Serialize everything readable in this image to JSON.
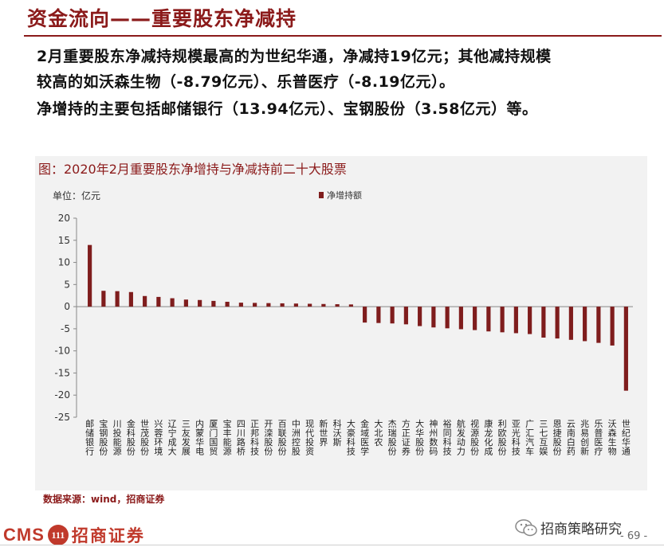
{
  "header": {
    "title": "资金流向——重要股东净减持"
  },
  "paragraphs": [
    "2月重要股东净减持规模最高的为世纪华通，净减持19亿元；其他减持规模",
    "较高的如沃森生物（-8.79亿元）、乐普医疗（-8.19亿元）。",
    "净增持的主要包括邮储银行（13.94亿元）、宝钢股份（3.58亿元）等。"
  ],
  "chart": {
    "title": "图：2020年2月重要股东净增持与净减持前二十大股票",
    "unit_label": "单位：亿元",
    "bar_color": "#7f1d1d"
  },
  "chart_data": {
    "type": "bar",
    "title": "图：2020年2月重要股东净增持与净减持前二十大股票",
    "ylabel": "单位：亿元",
    "ylim": [
      -25,
      20
    ],
    "yticks": [
      20,
      15,
      10,
      5,
      0,
      -5,
      -10,
      -15,
      -20,
      -25
    ],
    "grid": false,
    "legend": {
      "position": "top",
      "entries": [
        "净增持额"
      ]
    },
    "categories": [
      "邮储银行",
      "宝钢股份",
      "川投能源",
      "金科股份",
      "世茂股份",
      "兴蓉环境",
      "辽宁成大",
      "三友发展",
      "内蒙华电",
      "厦门国贸",
      "宝丰能源",
      "四川路桥",
      "正邦科技",
      "开滦股份",
      "百联股份",
      "中洲控股",
      "现代投资",
      "新世界",
      "科沃斯",
      "大豪科技",
      "金域医学",
      "大北农",
      "杰瑞股份",
      "方正证券",
      "大华股份",
      "神州数码",
      "裕同科技",
      "航发动力",
      "视源股份",
      "康龙化成",
      "利欧股份",
      "亚光科技",
      "广汇汽车",
      "三七互娱",
      "恩捷股份",
      "云南白药",
      "兆易创新",
      "乐普医疗",
      "沃森生物",
      "世纪华通"
    ],
    "series": [
      {
        "name": "净增持额",
        "values": [
          13.94,
          3.58,
          3.5,
          3.3,
          2.4,
          2.2,
          1.9,
          1.6,
          1.5,
          1.3,
          1.1,
          0.9,
          0.85,
          0.8,
          0.75,
          0.7,
          0.65,
          0.6,
          0.55,
          0.5,
          -3.6,
          -3.7,
          -3.8,
          -4.0,
          -4.4,
          -4.7,
          -4.9,
          -5.1,
          -5.3,
          -5.6,
          -5.8,
          -6.0,
          -6.2,
          -7.0,
          -7.2,
          -7.5,
          -7.8,
          -8.19,
          -8.79,
          -19.0
        ]
      }
    ]
  },
  "source": "数据来源：wind，招商证券",
  "footer": {
    "logo_cms": "CMS",
    "logo_mark": "111",
    "logo_cn": "招商证券",
    "wechat_name": "招商策略研究",
    "page_number": "- 69 -"
  }
}
